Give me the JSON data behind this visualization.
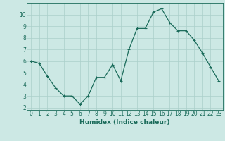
{
  "x": [
    0,
    1,
    2,
    3,
    4,
    5,
    6,
    7,
    8,
    9,
    10,
    11,
    12,
    13,
    14,
    15,
    16,
    17,
    18,
    19,
    20,
    21,
    22,
    23
  ],
  "y": [
    6.0,
    5.8,
    4.7,
    3.7,
    3.0,
    3.0,
    2.3,
    3.0,
    4.6,
    4.6,
    5.7,
    4.3,
    7.0,
    8.8,
    8.8,
    10.2,
    10.5,
    9.3,
    8.6,
    8.6,
    7.8,
    6.7,
    5.5,
    4.3
  ],
  "line_color": "#1a6b5a",
  "bg_color": "#cce8e4",
  "grid_color": "#aacfca",
  "xlabel": "Humidex (Indice chaleur)",
  "xlim": [
    -0.5,
    23.5
  ],
  "ylim": [
    1.8,
    11.0
  ],
  "yticks": [
    2,
    3,
    4,
    5,
    6,
    7,
    8,
    9,
    10
  ],
  "xticks": [
    0,
    1,
    2,
    3,
    4,
    5,
    6,
    7,
    8,
    9,
    10,
    11,
    12,
    13,
    14,
    15,
    16,
    17,
    18,
    19,
    20,
    21,
    22,
    23
  ],
  "tick_label_fontsize": 5.5,
  "xlabel_fontsize": 6.5,
  "marker": "+",
  "marker_size": 3.5,
  "line_width": 0.9
}
